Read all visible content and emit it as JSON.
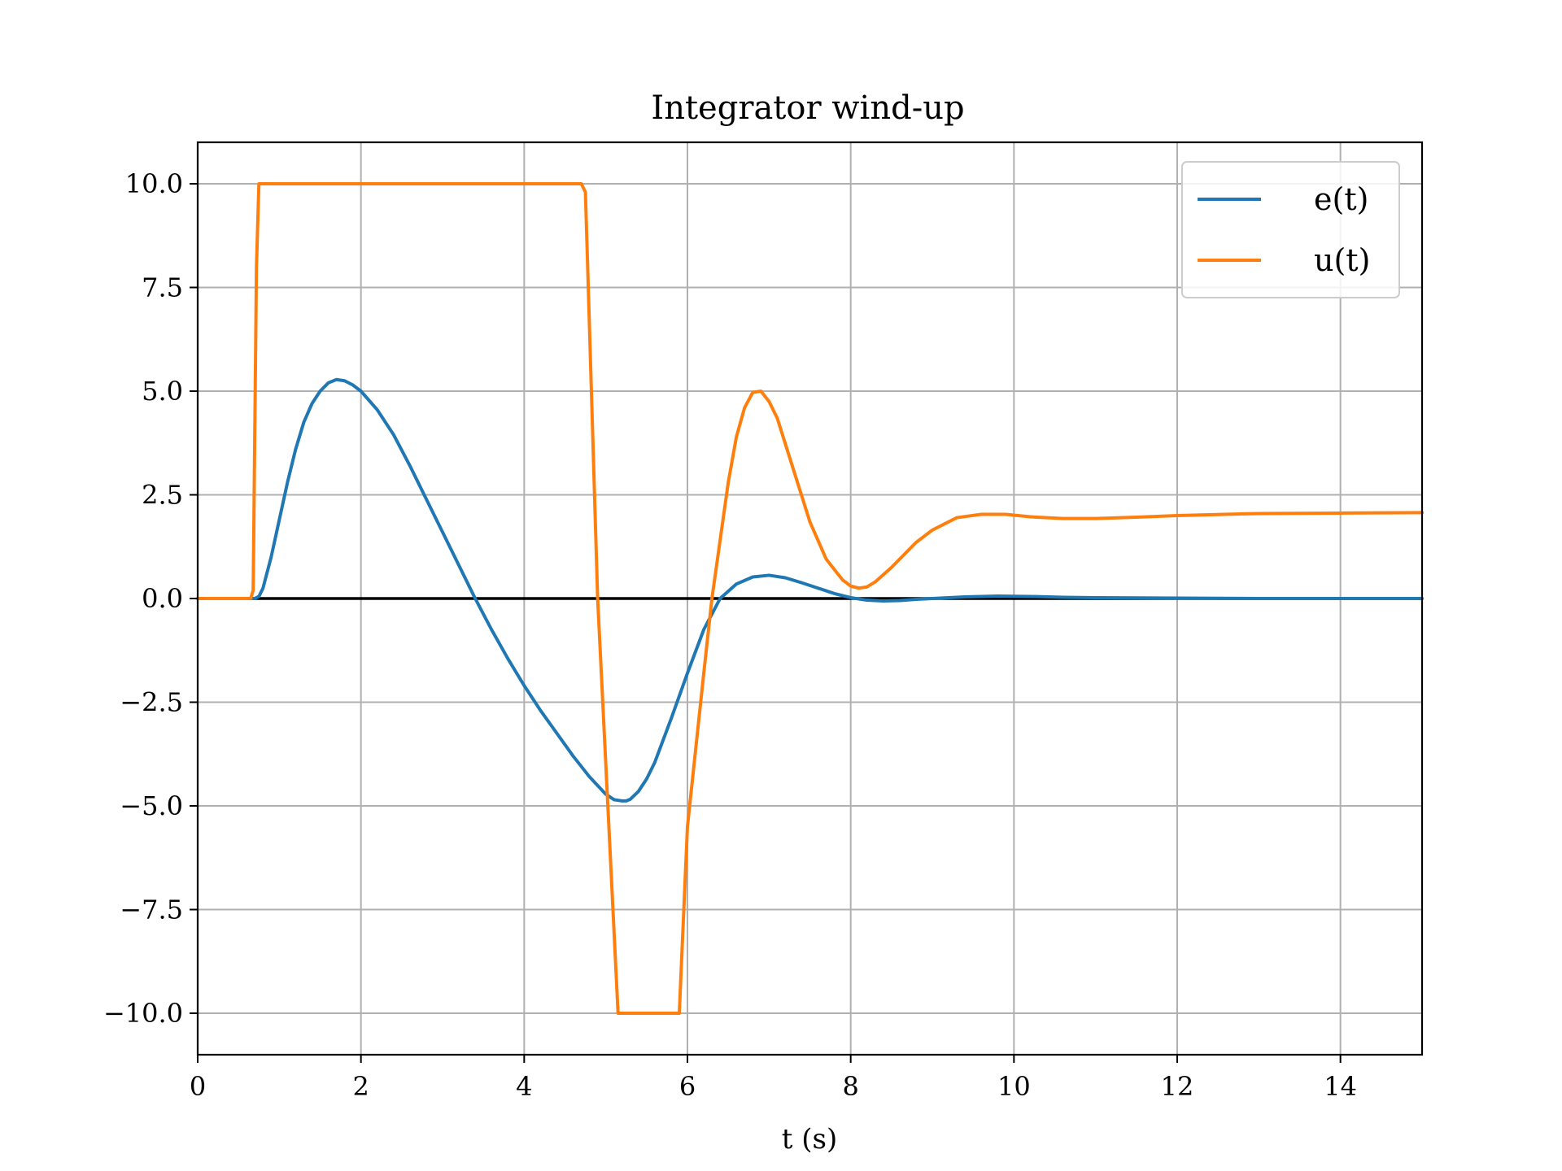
{
  "chart_data": {
    "type": "line",
    "title": "Integrator wind-up",
    "xlabel": "t (s)",
    "ylabel": "",
    "xlim": [
      0,
      15
    ],
    "ylim": [
      -11,
      11
    ],
    "xticks": [
      0,
      2,
      4,
      6,
      8,
      10,
      12,
      14
    ],
    "xtick_labels": [
      "0",
      "2",
      "4",
      "6",
      "8",
      "10",
      "12",
      "14"
    ],
    "yticks": [
      10,
      7.5,
      5,
      2.5,
      0,
      -2.5,
      -5,
      -7.5,
      -10
    ],
    "ytick_labels": [
      "10.0",
      "7.5",
      "5.0",
      "2.5",
      "0.0",
      "−2.5",
      "−5.0",
      "−7.5",
      "−10.0"
    ],
    "grid": true,
    "legend_position": "top-right",
    "reference_line": {
      "y": 0,
      "color": "#000000"
    },
    "series": [
      {
        "name": "e(t)",
        "color": "#1f77b4",
        "x": [
          0,
          0.7,
          0.75,
          0.8,
          0.9,
          1.0,
          1.1,
          1.2,
          1.3,
          1.4,
          1.5,
          1.6,
          1.7,
          1.8,
          1.9,
          2.0,
          2.2,
          2.4,
          2.6,
          2.8,
          3.0,
          3.2,
          3.4,
          3.6,
          3.8,
          4.0,
          4.2,
          4.4,
          4.6,
          4.8,
          5.0,
          5.1,
          5.2,
          5.25,
          5.3,
          5.4,
          5.5,
          5.6,
          5.8,
          6.0,
          6.2,
          6.4,
          6.6,
          6.8,
          7.0,
          7.2,
          7.4,
          7.6,
          7.8,
          8.0,
          8.2,
          8.4,
          8.6,
          8.8,
          9.0,
          9.4,
          9.8,
          10.2,
          10.6,
          11,
          12,
          13,
          14,
          15
        ],
        "y": [
          0,
          0,
          0.05,
          0.25,
          1.0,
          1.9,
          2.8,
          3.6,
          4.25,
          4.7,
          5.0,
          5.2,
          5.28,
          5.25,
          5.15,
          5.0,
          4.55,
          3.95,
          3.2,
          2.4,
          1.6,
          0.8,
          0.0,
          -0.75,
          -1.45,
          -2.1,
          -2.7,
          -3.25,
          -3.8,
          -4.3,
          -4.72,
          -4.85,
          -4.88,
          -4.88,
          -4.84,
          -4.65,
          -4.35,
          -3.95,
          -2.9,
          -1.8,
          -0.75,
          0.0,
          0.35,
          0.52,
          0.56,
          0.5,
          0.38,
          0.25,
          0.12,
          0.02,
          -0.04,
          -0.06,
          -0.05,
          -0.02,
          0.0,
          0.04,
          0.06,
          0.05,
          0.03,
          0.02,
          0.01,
          0.0,
          0.0,
          0.0
        ]
      },
      {
        "name": "u(t)",
        "color": "#ff7f0e",
        "x": [
          0,
          0.65,
          0.68,
          0.72,
          0.75,
          1.0,
          2.0,
          3.0,
          4.0,
          4.7,
          4.75,
          4.9,
          5.15,
          5.2,
          5.9,
          6.0,
          6.2,
          6.3,
          6.4,
          6.5,
          6.6,
          6.7,
          6.8,
          6.9,
          7.0,
          7.1,
          7.3,
          7.5,
          7.7,
          7.9,
          8.0,
          8.1,
          8.2,
          8.3,
          8.5,
          8.8,
          9.0,
          9.3,
          9.6,
          9.9,
          10.2,
          10.6,
          11.0,
          11.5,
          12.0,
          13.0,
          14.0,
          15.0
        ],
        "y": [
          0,
          0,
          0.2,
          8.0,
          10,
          10,
          10,
          10,
          10,
          10,
          9.8,
          0.0,
          -10,
          -10,
          -10,
          -5.5,
          -1.8,
          0.0,
          1.4,
          2.8,
          3.9,
          4.6,
          4.97,
          5.0,
          4.75,
          4.35,
          3.1,
          1.85,
          0.95,
          0.45,
          0.3,
          0.25,
          0.28,
          0.4,
          0.75,
          1.35,
          1.65,
          1.95,
          2.03,
          2.03,
          1.97,
          1.93,
          1.93,
          1.96,
          2.0,
          2.05,
          2.06,
          2.07
        ]
      }
    ]
  }
}
